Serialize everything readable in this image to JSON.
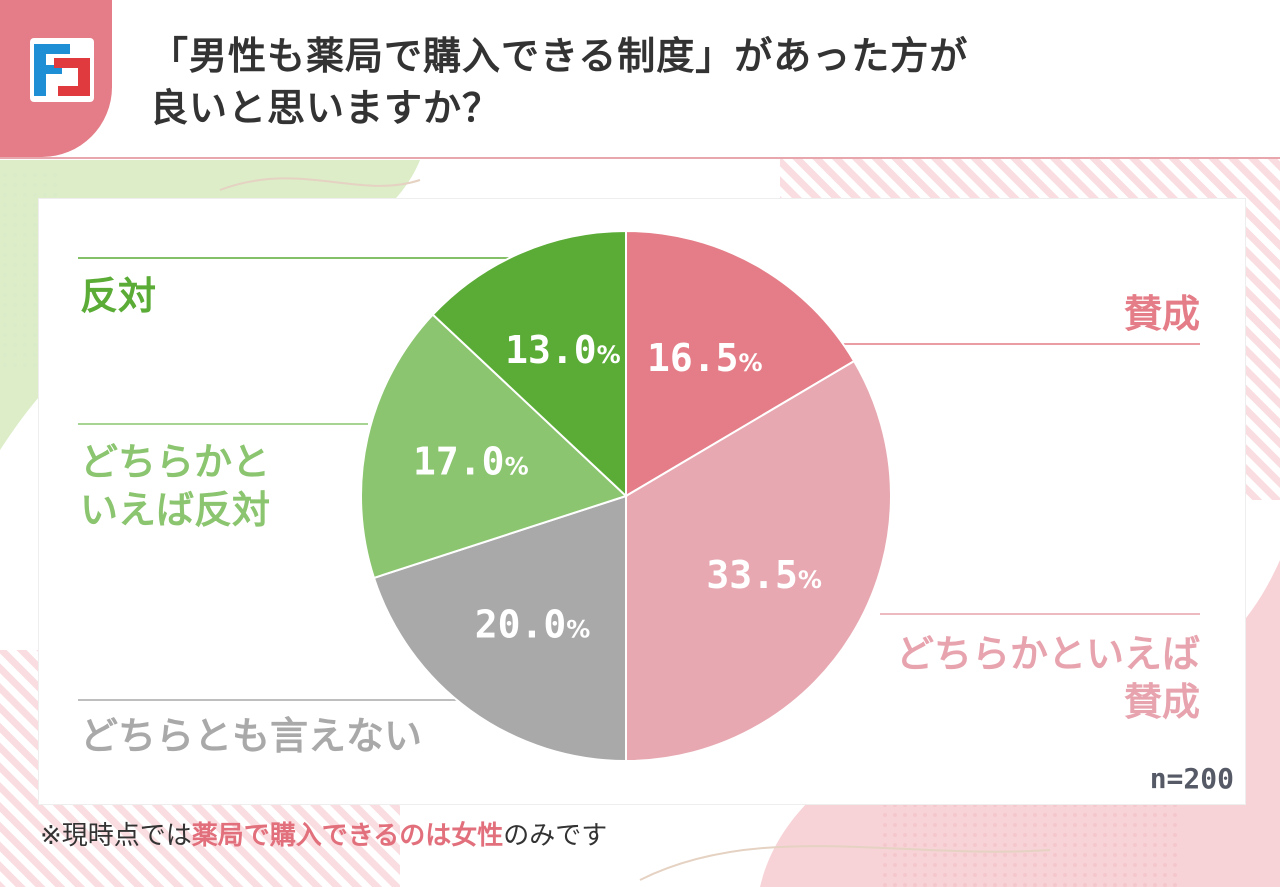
{
  "header": {
    "title_line1": "「男性も薬局で購入できる制度」があった方が",
    "title_line2": "良いと思いますか？"
  },
  "chart_data": {
    "type": "pie",
    "start": "12 o'clock",
    "direction": "clockwise",
    "slices": [
      {
        "label": "賛成",
        "value": 16.5,
        "value_label": "16.5",
        "color": "#e47d87"
      },
      {
        "label": "どちらかといえば賛成",
        "value": 33.5,
        "value_label": "33.5",
        "color": "#e7a8b1"
      },
      {
        "label": "どちらとも言えない",
        "value": 20.0,
        "value_label": "20.0",
        "color": "#a9a9a9"
      },
      {
        "label": "どちらかといえば反対",
        "value": 17.0,
        "value_label": "17.0",
        "color": "#8bc56f"
      },
      {
        "label": "反対",
        "value": 13.0,
        "value_label": "13.0",
        "color": "#5aac36"
      }
    ],
    "unit": "%",
    "n_label": "n=200"
  },
  "labels": {
    "against": "反対",
    "rather_against_line1": "どちらかと",
    "rather_against_line2": "いえば反対",
    "neutral": "どちらとも言えない",
    "agree": "賛成",
    "rather_agree_line1": "どちらかといえば",
    "rather_agree_line2": "賛成"
  },
  "footnote": {
    "prefix": "※現時点では",
    "highlight1": "薬局で購入できるのは",
    "highlight2": "女性",
    "suffix": "のみです"
  },
  "colors": {
    "accent_pink": "#e47d87",
    "accent_green": "#5aac36",
    "logo_blue": "#1e8fd5",
    "logo_red": "#e03a3e"
  }
}
